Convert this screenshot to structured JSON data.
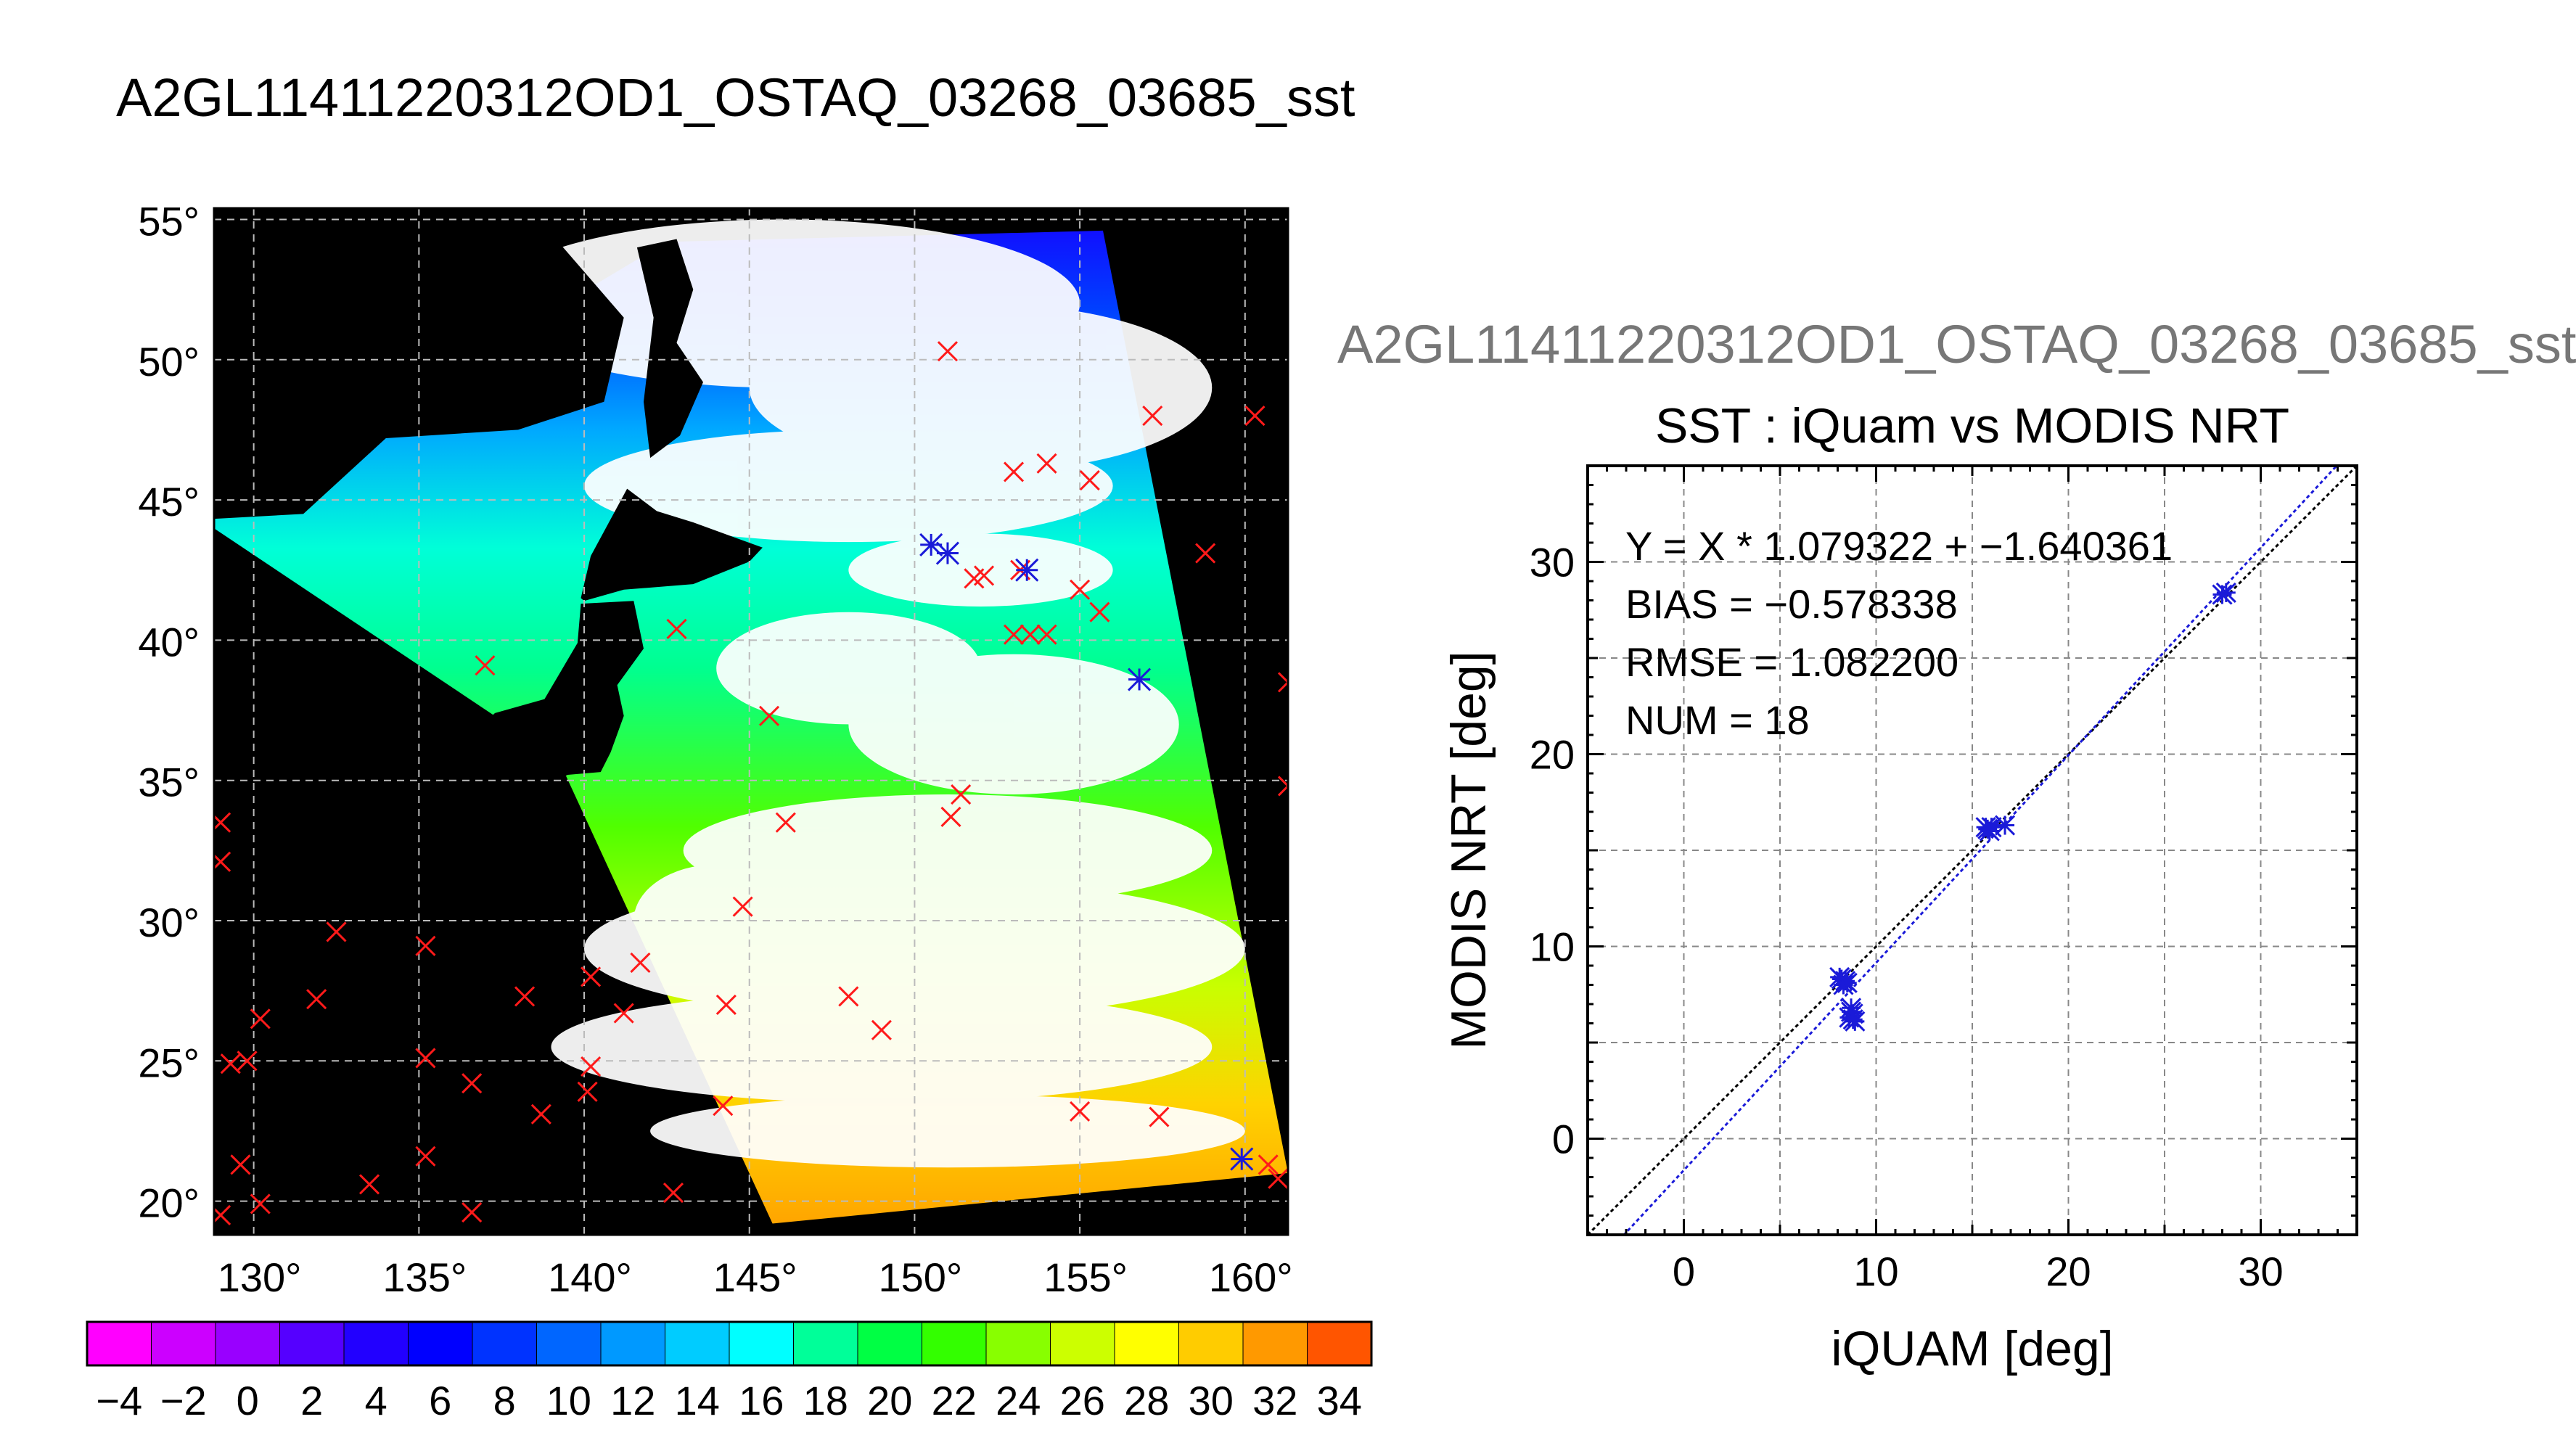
{
  "page": {
    "title": "A2GL11411220312OD1_OSTAQ_03268_03685_sst",
    "scatter_title_gray": "A2GL11411220312OD1_OSTAQ_03268_03685_sst"
  },
  "colors": {
    "land": "#000000",
    "cloud": "#ffffff",
    "marker_red": "#ff1a1a",
    "marker_blue": "#1a1ad8",
    "one_to_one_line": "#000000",
    "fit_line": "#1a1ad8"
  },
  "chart_data": [
    {
      "type": "map",
      "title": "",
      "lon_ticks": [
        "130°",
        "135°",
        "140°",
        "145°",
        "150°",
        "155°",
        "160°"
      ],
      "lon_tick_values": [
        130,
        135,
        140,
        145,
        150,
        155,
        160
      ],
      "lat_ticks": [
        "55°",
        "50°",
        "45°",
        "40°",
        "35°",
        "30°",
        "25°",
        "20°"
      ],
      "lat_tick_values": [
        55,
        50,
        45,
        40,
        35,
        30,
        25,
        20
      ],
      "xlim": [
        128.8,
        161.3
      ],
      "ylim": [
        18.8,
        55.4
      ],
      "grid": true,
      "swath_lonlat": [
        [
          142.5,
          54.2
        ],
        [
          155.7,
          54.6
        ],
        [
          161.3,
          21.0
        ],
        [
          145.7,
          19.2
        ],
        [
          139.2,
          35.8
        ],
        [
          128.4,
          44.3
        ]
      ],
      "iquam_red": [
        [
          151.0,
          50.3
        ],
        [
          157.2,
          48.0
        ],
        [
          160.3,
          48.0
        ],
        [
          153.0,
          46.0
        ],
        [
          154.0,
          46.3
        ],
        [
          155.3,
          45.7
        ],
        [
          158.8,
          43.1
        ],
        [
          151.8,
          42.2
        ],
        [
          152.1,
          42.3
        ],
        [
          153.2,
          42.5
        ],
        [
          155.0,
          41.8
        ],
        [
          155.6,
          41.0
        ],
        [
          153.0,
          40.2
        ],
        [
          153.5,
          40.2
        ],
        [
          154.0,
          40.2
        ],
        [
          142.8,
          40.4
        ],
        [
          137.0,
          39.1
        ],
        [
          161.3,
          38.5
        ],
        [
          145.6,
          37.3
        ],
        [
          161.3,
          34.8
        ],
        [
          151.4,
          34.5
        ],
        [
          151.1,
          33.7
        ],
        [
          146.1,
          33.5
        ],
        [
          129.0,
          33.5
        ],
        [
          129.0,
          32.1
        ],
        [
          144.8,
          30.5
        ],
        [
          132.5,
          29.6
        ],
        [
          135.2,
          29.1
        ],
        [
          141.7,
          28.5
        ],
        [
          140.2,
          28.0
        ],
        [
          131.9,
          27.2
        ],
        [
          138.2,
          27.3
        ],
        [
          144.3,
          27.0
        ],
        [
          148.0,
          27.3
        ],
        [
          141.2,
          26.7
        ],
        [
          130.2,
          26.5
        ],
        [
          149.0,
          26.1
        ],
        [
          129.8,
          25.0
        ],
        [
          129.3,
          24.9
        ],
        [
          135.2,
          25.1
        ],
        [
          140.2,
          24.8
        ],
        [
          136.6,
          24.2
        ],
        [
          140.1,
          23.9
        ],
        [
          144.2,
          23.4
        ],
        [
          155.0,
          23.2
        ],
        [
          157.4,
          23.0
        ],
        [
          138.7,
          23.1
        ],
        [
          133.5,
          20.6
        ],
        [
          135.2,
          21.6
        ],
        [
          129.6,
          21.3
        ],
        [
          142.7,
          20.3
        ],
        [
          130.2,
          19.9
        ],
        [
          129.0,
          19.5
        ],
        [
          136.6,
          19.6
        ],
        [
          160.7,
          21.3
        ],
        [
          161.0,
          20.8
        ]
      ],
      "iquam_blue": [
        [
          150.5,
          43.4
        ],
        [
          151.0,
          43.1
        ],
        [
          153.4,
          42.5
        ],
        [
          156.8,
          38.6
        ],
        [
          159.9,
          21.5
        ]
      ]
    },
    {
      "type": "scatter",
      "title": "SST : iQuam vs MODIS NRT",
      "xlabel": "iQUAM [deg]",
      "ylabel": "MODIS NRT [deg]",
      "xlim": [
        -5,
        35
      ],
      "ylim": [
        -5,
        35
      ],
      "xticks": [
        "0",
        "10",
        "20",
        "30"
      ],
      "xtick_values": [
        0,
        10,
        20,
        30
      ],
      "yticks": [
        "0",
        "10",
        "20",
        "30"
      ],
      "ytick_values": [
        0,
        10,
        20,
        30
      ],
      "grid": true,
      "stats": [
        "Y = X * 1.079322 + −1.640361",
        "BIAS = −0.578338",
        "RMSE = 1.082200",
        "NUM = 18"
      ],
      "fit": {
        "slope": 1.079322,
        "intercept": -1.640361
      },
      "points": [
        [
          8.2,
          8.3
        ],
        [
          8.4,
          8.2
        ],
        [
          8.3,
          8.0
        ],
        [
          8.1,
          8.4
        ],
        [
          8.7,
          6.8
        ],
        [
          8.8,
          6.5
        ],
        [
          8.6,
          6.3
        ],
        [
          8.9,
          6.1
        ],
        [
          8.7,
          6.6
        ],
        [
          15.7,
          16.2
        ],
        [
          15.9,
          16.0
        ],
        [
          16.7,
          16.3
        ],
        [
          15.8,
          16.1
        ],
        [
          28.0,
          28.3
        ],
        [
          28.2,
          28.4
        ],
        [
          8.5,
          8.1
        ],
        [
          8.8,
          6.2
        ],
        [
          16.0,
          16.2
        ]
      ]
    },
    {
      "type": "colorbar",
      "labels": [
        "−4",
        "−2",
        "0",
        "2",
        "4",
        "6",
        "8",
        "10",
        "12",
        "14",
        "16",
        "18",
        "20",
        "22",
        "24",
        "26",
        "28",
        "30",
        "32",
        "34"
      ],
      "values": [
        -4,
        -2,
        0,
        2,
        4,
        6,
        8,
        10,
        12,
        14,
        16,
        18,
        20,
        22,
        24,
        26,
        28,
        30,
        32,
        34
      ],
      "colors": [
        "#ff00ff",
        "#cc00ff",
        "#9900ff",
        "#5500ff",
        "#2200ff",
        "#0000ff",
        "#0033ff",
        "#0066ff",
        "#0099ff",
        "#00ccff",
        "#00ffff",
        "#00ff99",
        "#00ff44",
        "#33ff00",
        "#88ff00",
        "#ccff00",
        "#ffff00",
        "#ffcc00",
        "#ff9900",
        "#ff5500"
      ]
    }
  ]
}
